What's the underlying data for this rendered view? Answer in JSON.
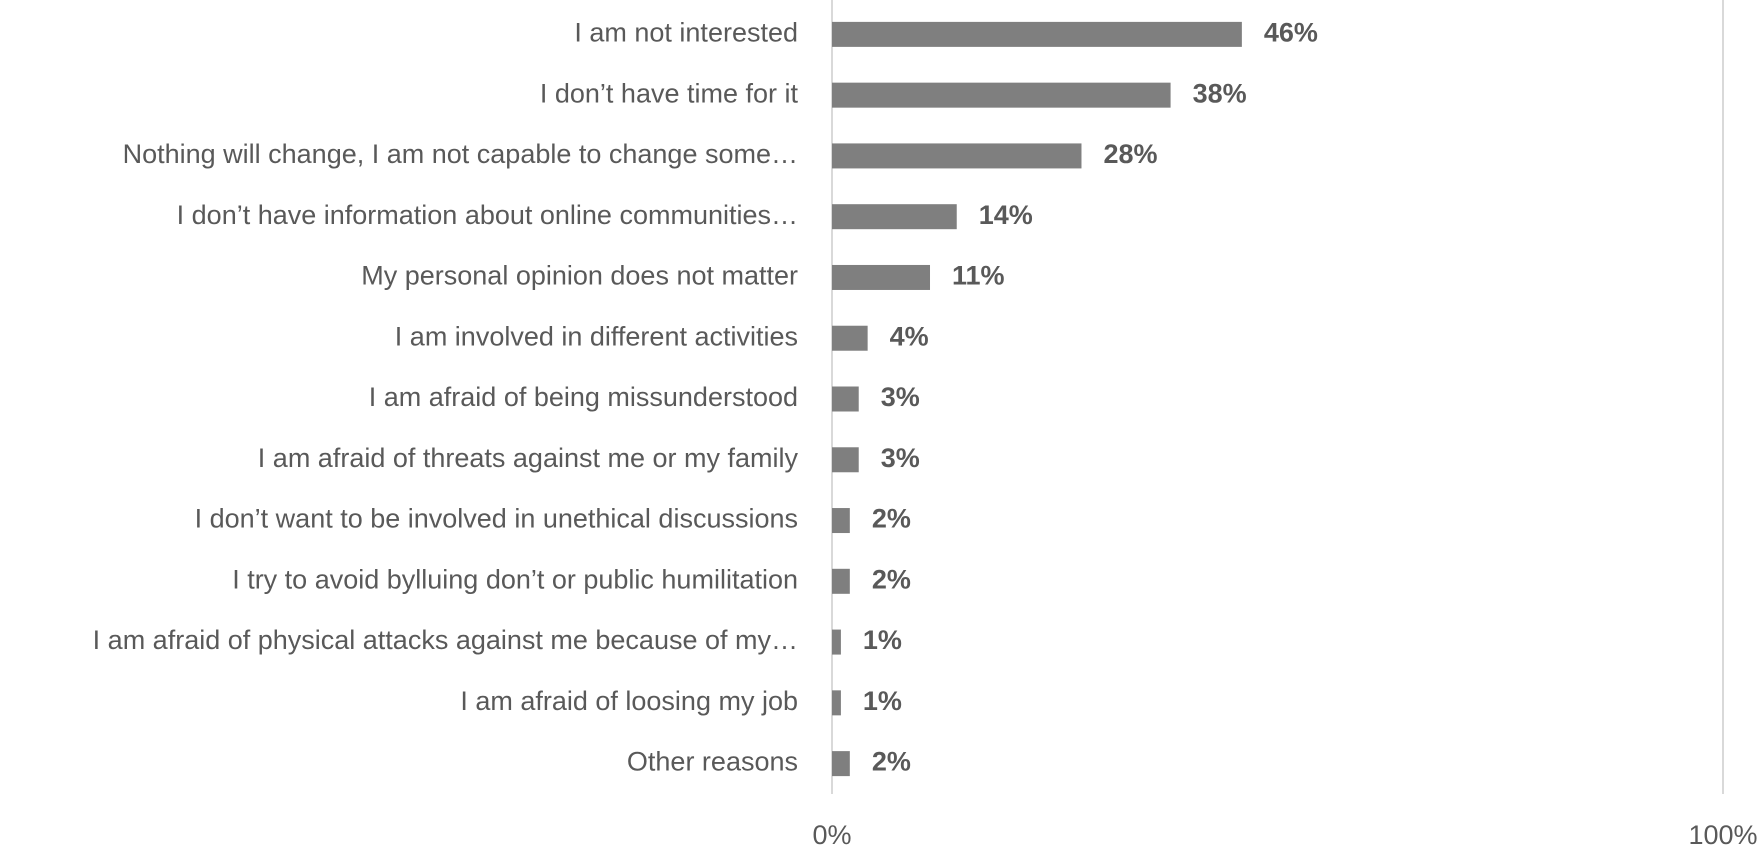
{
  "chart_data": {
    "type": "hbar",
    "categories": [
      "I am not interested",
      "I don’t have time for it",
      "Nothing will change, I am not capable to change some…",
      "I don’t have information about online communities…",
      "My personal opinion does not matter",
      "I am involved in different activities",
      "I am afraid of being missunderstood",
      "I am afraid of threats against me or my family",
      "I don’t want to be involved in unethical discussions",
      "I try to avoid bylluing don’t or public humilitation",
      "I am afraid of physical attacks against me because of my…",
      "I am afraid of loosing my job",
      "Other reasons"
    ],
    "values": [
      46,
      38,
      28,
      14,
      11,
      4,
      3,
      3,
      2,
      2,
      1,
      1,
      2
    ],
    "value_labels": [
      "46%",
      "38%",
      "28%",
      "14%",
      "11%",
      "4%",
      "3%",
      "3%",
      "2%",
      "2%",
      "1%",
      "1%",
      "2%"
    ],
    "color": "#7f7f7f",
    "xlim": [
      0,
      100
    ],
    "xticks": [
      {
        "value": 0,
        "label": "0%"
      },
      {
        "value": 100,
        "label": "100%"
      }
    ],
    "grid": true
  }
}
